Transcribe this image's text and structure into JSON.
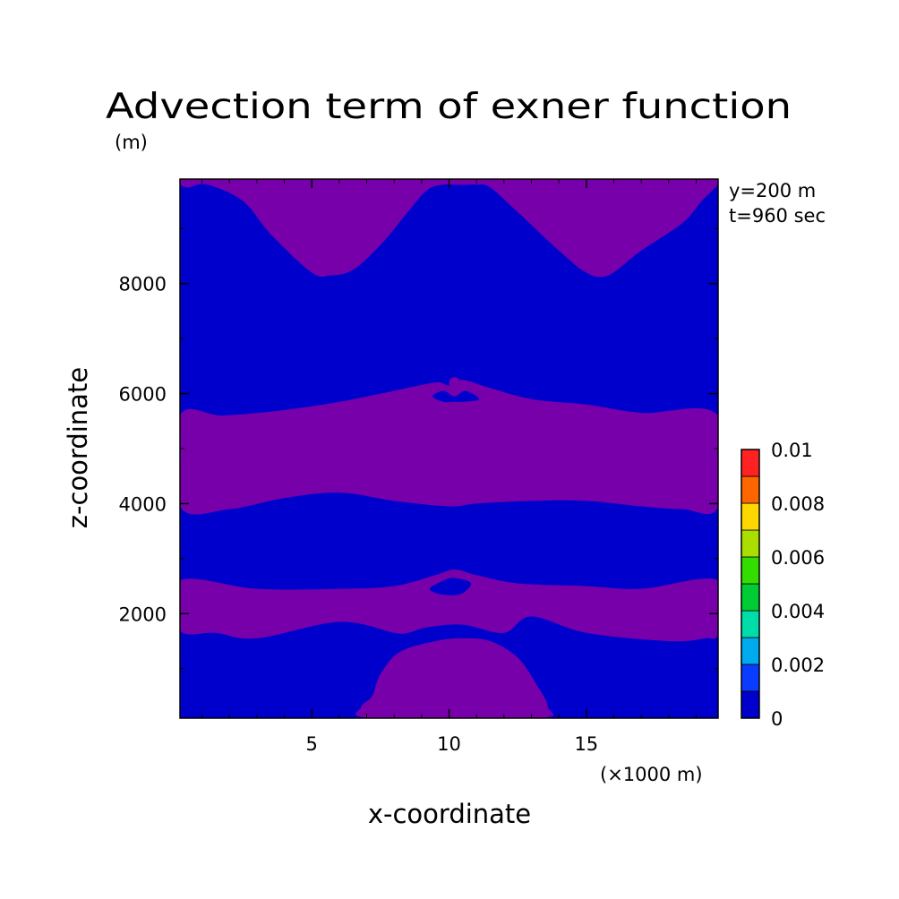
{
  "chart_data": {
    "type": "heatmap",
    "title": "Advection term of exner function",
    "ylabel": "z-coordinate",
    "yunit": "(m)",
    "xlabel": "x-coordinate",
    "xunit": "(×1000 m)",
    "annotations": [
      "y=200 m",
      "t=960 sec"
    ],
    "xlim": [
      0.2,
      19.8
    ],
    "ylim": [
      100,
      9900
    ],
    "xticks": [
      5,
      10,
      15
    ],
    "xtick_labels": [
      "5",
      "10",
      "15"
    ],
    "yticks": [
      2000,
      4000,
      6000,
      8000
    ],
    "ytick_labels": [
      "2000",
      "4000",
      "6000",
      "8000"
    ],
    "grid": false,
    "legend": "colorbar-right",
    "colorbar": {
      "min": 0,
      "max": 0.01,
      "levels": [
        0,
        0.001,
        0.002,
        0.003,
        0.004,
        0.005,
        0.006,
        0.007,
        0.008,
        0.009,
        0.01
      ],
      "tick_values": [
        0,
        0.002,
        0.004,
        0.006,
        0.008,
        0.01
      ],
      "tick_labels": [
        "0",
        "0.002",
        "0.004",
        "0.006",
        "0.008",
        "0.01"
      ],
      "colors": [
        "#0000cc",
        "#0a3cff",
        "#00aaee",
        "#00ddaa",
        "#00cc33",
        "#33dd00",
        "#aadd00",
        "#ffd700",
        "#ff6600",
        "#ff2222"
      ]
    },
    "background_color": "#0000cc",
    "region_color": "#7700aa",
    "regions": [
      {
        "name": "upper-left-lobe",
        "points": [
          [
            0.2,
            9900
          ],
          [
            10.4,
            9900
          ],
          [
            10.4,
            9800
          ],
          [
            9.8,
            9800
          ],
          [
            9.2,
            9700
          ],
          [
            8.5,
            9300
          ],
          [
            7.5,
            8700
          ],
          [
            6.5,
            8250
          ],
          [
            5.7,
            8150
          ],
          [
            5.0,
            8200
          ],
          [
            3.5,
            8900
          ],
          [
            2.5,
            9500
          ],
          [
            1.2,
            9800
          ],
          [
            0.5,
            9750
          ],
          [
            0.2,
            9800
          ]
        ]
      },
      {
        "name": "upper-right-lobe",
        "points": [
          [
            10.4,
            9900
          ],
          [
            19.8,
            9900
          ],
          [
            19.8,
            9800
          ],
          [
            19.2,
            9500
          ],
          [
            18.5,
            9100
          ],
          [
            17,
            8600
          ],
          [
            15.8,
            8150
          ],
          [
            15.0,
            8200
          ],
          [
            14,
            8600
          ],
          [
            12.5,
            9300
          ],
          [
            11.5,
            9750
          ],
          [
            11,
            9800
          ],
          [
            10.4,
            9800
          ]
        ]
      },
      {
        "name": "middle-band",
        "points": [
          [
            0.2,
            5600
          ],
          [
            1.8,
            5600
          ],
          [
            4,
            5700
          ],
          [
            6,
            5850
          ],
          [
            8,
            6050
          ],
          [
            9.5,
            6200
          ],
          [
            10,
            6150
          ],
          [
            10.5,
            6250
          ],
          [
            11.5,
            6100
          ],
          [
            13,
            5900
          ],
          [
            15,
            5800
          ],
          [
            17,
            5650
          ],
          [
            19.8,
            5600
          ],
          [
            19.8,
            3950
          ],
          [
            18.5,
            3900
          ],
          [
            17,
            3950
          ],
          [
            15,
            4050
          ],
          [
            13,
            4050
          ],
          [
            11,
            4000
          ],
          [
            10,
            3950
          ],
          [
            8,
            4050
          ],
          [
            6,
            4200
          ],
          [
            4,
            4100
          ],
          [
            2,
            3900
          ],
          [
            0.2,
            3950
          ]
        ]
      },
      {
        "name": "lower-band",
        "points": [
          [
            0.2,
            2600
          ],
          [
            3,
            2450
          ],
          [
            6,
            2450
          ],
          [
            8,
            2500
          ],
          [
            9.5,
            2700
          ],
          [
            10.2,
            2800
          ],
          [
            11,
            2700
          ],
          [
            12.5,
            2550
          ],
          [
            15,
            2500
          ],
          [
            17,
            2450
          ],
          [
            19.8,
            2600
          ],
          [
            19.8,
            1650
          ],
          [
            19.3,
            1550
          ],
          [
            18,
            1500
          ],
          [
            15,
            1650
          ],
          [
            13,
            1950
          ],
          [
            12,
            1650
          ],
          [
            10.5,
            1800
          ],
          [
            9.2,
            1750
          ],
          [
            8.5,
            1650
          ],
          [
            8,
            1650
          ],
          [
            6,
            1850
          ],
          [
            3,
            1550
          ],
          [
            1.5,
            1650
          ],
          [
            0.2,
            1700
          ]
        ]
      },
      {
        "name": "bottom-dome",
        "points": [
          [
            7.2,
            100
          ],
          [
            13.2,
            100
          ],
          [
            13.6,
            300
          ],
          [
            13.2,
            700
          ],
          [
            12.5,
            1200
          ],
          [
            11.5,
            1500
          ],
          [
            10.5,
            1550
          ],
          [
            9.5,
            1500
          ],
          [
            8.2,
            1300
          ],
          [
            7.5,
            900
          ],
          [
            7.2,
            500
          ],
          [
            6.8,
            300
          ]
        ]
      }
    ],
    "holes": [
      {
        "name": "upper-hole",
        "points": [
          [
            9.4,
            5950
          ],
          [
            9.8,
            6050
          ],
          [
            10.2,
            5950
          ],
          [
            10.6,
            6050
          ],
          [
            11.1,
            5900
          ],
          [
            10.5,
            5850
          ],
          [
            10.2,
            5850
          ],
          [
            9.8,
            5850
          ]
        ]
      },
      {
        "name": "lower-hole",
        "points": [
          [
            9.3,
            2450
          ],
          [
            9.8,
            2600
          ],
          [
            10.2,
            2650
          ],
          [
            10.8,
            2550
          ],
          [
            10.4,
            2350
          ],
          [
            9.7,
            2350
          ]
        ]
      }
    ],
    "dots": [
      {
        "x": 10.2,
        "y": 6200
      }
    ]
  }
}
